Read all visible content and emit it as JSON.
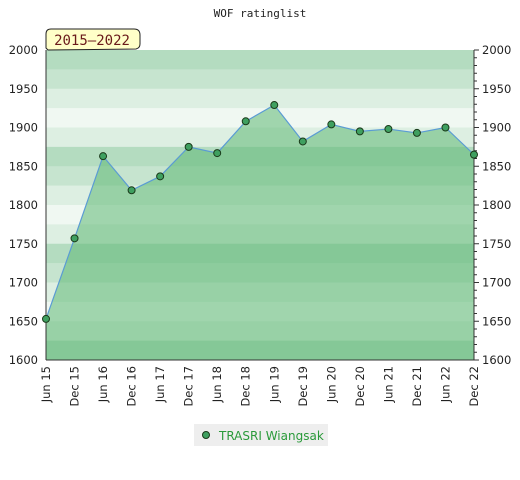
{
  "chart_data": {
    "type": "area",
    "title": "WOF ratinglist",
    "period_label": "2015–2022",
    "x": [
      "Jun 15",
      "Dec 15",
      "Jun 16",
      "Dec 16",
      "Jun 17",
      "Dec 17",
      "Jun 18",
      "Dec 18",
      "Jun 19",
      "Dec 19",
      "Jun 20",
      "Dec 20",
      "Jun 21",
      "Dec 21",
      "Jun 22",
      "Dec 22"
    ],
    "series": [
      {
        "name": "TRASRI Wiangsak",
        "values": [
          1653,
          1757,
          1863,
          1819,
          1837,
          1875,
          1867,
          1908,
          1929,
          1882,
          1904,
          1895,
          1898,
          1893,
          1900,
          1865
        ]
      }
    ],
    "ylim": [
      1600,
      2000
    ],
    "y_ticks": [
      1600,
      1650,
      1700,
      1750,
      1800,
      1850,
      1900,
      1950,
      2000
    ],
    "xlabel": "",
    "ylabel": "",
    "legend_position": "bottom-center",
    "colors": {
      "area_fill": "#5fb874",
      "line": "#5a9bd4",
      "marker_fill": "#3fa060",
      "marker_stroke": "#1a3a1a",
      "period_bg": "#ffffc8"
    }
  }
}
